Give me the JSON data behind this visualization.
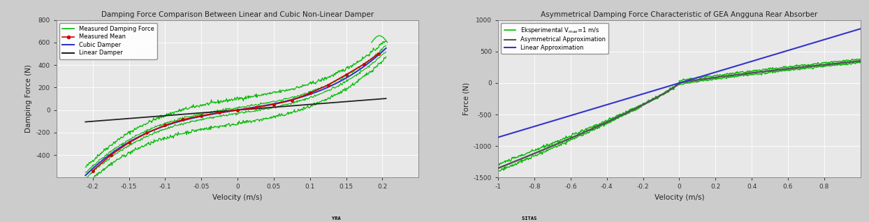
{
  "plot1": {
    "title": "Damping Force Comparison Between Linear and Cubic Non-Linear Damper",
    "xlabel": "Velocity (m/s)",
    "ylabel": "Damping Force (N)",
    "xlim": [
      -0.25,
      0.25
    ],
    "ylim": [
      -600,
      800
    ],
    "yticks": [
      -400,
      -200,
      0,
      200,
      400,
      600,
      800
    ],
    "xticks": [
      -0.2,
      -0.15,
      -0.1,
      -0.05,
      0,
      0.05,
      0.1,
      0.15,
      0.2
    ],
    "bg_color": "#e8e8e8",
    "linear_color": "#222222",
    "cubic_color": "#3333cc",
    "mean_color": "#cc0000",
    "meas_color": "#00bb00"
  },
  "plot2": {
    "title": "Asymmetrical Damping Force Characteristic of GEA Angguna Rear Absorber",
    "xlabel": "Velocity (m/s)",
    "ylabel": "Force (N)",
    "xlim": [
      -1.0,
      1.0
    ],
    "ylim": [
      -1500,
      1000
    ],
    "yticks": [
      -1500,
      -1000,
      -500,
      0,
      500,
      1000
    ],
    "xticks": [
      -1.0,
      -0.8,
      -0.6,
      -0.4,
      -0.2,
      0,
      0.2,
      0.4,
      0.6,
      0.8
    ],
    "bg_color": "#e8e8e8",
    "exp_color": "#00bb00",
    "asym_color": "#555555",
    "lin_color": "#3333cc"
  }
}
